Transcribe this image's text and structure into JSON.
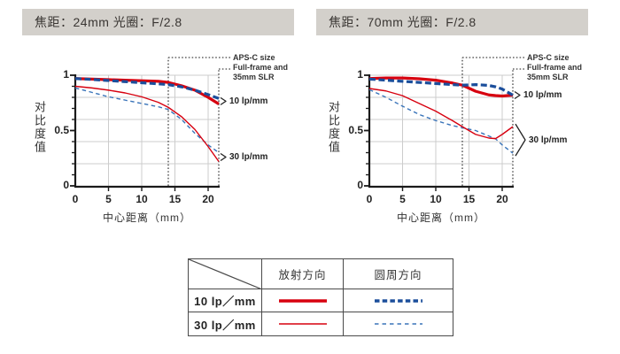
{
  "colors": {
    "red": "#d7000f",
    "blue": "#1b4e9b",
    "blue_thin": "#3873b9",
    "grid": "#cccccc",
    "axis": "#1a1a1a",
    "dotted": "#444444",
    "title_bg": "#d3d0cb"
  },
  "annotations": {
    "aps_c": "APS-C size",
    "full_frame_1": "Full-frame and",
    "full_frame_2": "35mm SLR",
    "lp10": "10 lp/mm",
    "lp30": "30 lp/mm"
  },
  "legend": {
    "col_radial": "放射方向",
    "col_circumferential": "圆周方向",
    "rows": [
      {
        "label": "10 lp／mm",
        "style": "thick"
      },
      {
        "label": "30 lp／mm",
        "style": "thin"
      }
    ]
  },
  "chart_data": [
    {
      "type": "line",
      "title": "焦距：24mm 光圈：F/2.8",
      "xlabel": "中心距离（mm）",
      "ylabel": "对比度值",
      "xlim": [
        0,
        21.6
      ],
      "ylim": [
        0,
        1
      ],
      "x_ticks": [
        0,
        5,
        10,
        15,
        20
      ],
      "y_ticks": [
        0,
        0.5,
        1
      ],
      "y_gridline_step": 0.2,
      "aps_c_line_x": 14,
      "full_frame_line_x": 21.6,
      "x": [
        0,
        2.5,
        5,
        7.5,
        10,
        12.5,
        14,
        16,
        18,
        20,
        21.6
      ],
      "series": [
        {
          "name": "10 lp/mm 放射方向",
          "color": "red",
          "style": "solid-thick",
          "values": [
            0.97,
            0.965,
            0.96,
            0.955,
            0.95,
            0.945,
            0.935,
            0.905,
            0.865,
            0.8,
            0.74
          ]
        },
        {
          "name": "10 lp/mm 圆周方向",
          "color": "blue",
          "style": "dashed-thick",
          "values": [
            0.97,
            0.962,
            0.952,
            0.942,
            0.932,
            0.922,
            0.915,
            0.895,
            0.865,
            0.825,
            0.79
          ]
        },
        {
          "name": "30 lp/mm 放射方向",
          "color": "red",
          "style": "solid-thin",
          "values": [
            0.9,
            0.885,
            0.865,
            0.84,
            0.805,
            0.755,
            0.71,
            0.625,
            0.51,
            0.355,
            0.22
          ]
        },
        {
          "name": "30 lp/mm 圆周方向",
          "color": "blue",
          "style": "dashed-thin",
          "values": [
            0.885,
            0.845,
            0.805,
            0.775,
            0.745,
            0.715,
            0.69,
            0.6,
            0.475,
            0.37,
            0.3
          ]
        }
      ]
    },
    {
      "type": "line",
      "title": "焦距：70mm 光圈：F/2.8",
      "xlabel": "中心距离（mm）",
      "ylabel": "对比度值",
      "xlim": [
        0,
        21.6
      ],
      "ylim": [
        0,
        1
      ],
      "x_ticks": [
        0,
        5,
        10,
        15,
        20
      ],
      "y_ticks": [
        0,
        0.5,
        1
      ],
      "y_gridline_step": 0.2,
      "aps_c_line_x": 14,
      "full_frame_line_x": 21.6,
      "x": [
        0,
        2.5,
        5,
        7.5,
        10,
        12.5,
        14,
        16,
        18,
        19,
        20,
        21.6
      ],
      "series": [
        {
          "name": "10 lp/mm 放射方向",
          "color": "red",
          "style": "solid-thick",
          "values": [
            0.97,
            0.975,
            0.975,
            0.968,
            0.955,
            0.93,
            0.91,
            0.855,
            0.822,
            0.816,
            0.812,
            0.82
          ]
        },
        {
          "name": "10 lp/mm 圆周方向",
          "color": "blue",
          "style": "dashed-thick",
          "values": [
            0.965,
            0.955,
            0.945,
            0.935,
            0.925,
            0.915,
            0.91,
            0.915,
            0.908,
            0.895,
            0.875,
            0.82
          ]
        },
        {
          "name": "30 lp/mm 放射方向",
          "color": "red",
          "style": "solid-thin",
          "values": [
            0.88,
            0.858,
            0.815,
            0.745,
            0.675,
            0.59,
            0.535,
            0.465,
            0.432,
            0.427,
            0.465,
            0.535
          ]
        },
        {
          "name": "30 lp/mm 圆周方向",
          "color": "blue",
          "style": "dashed-thin",
          "values": [
            0.87,
            0.8,
            0.72,
            0.645,
            0.59,
            0.545,
            0.525,
            0.5,
            0.45,
            0.425,
            0.37,
            0.295
          ]
        }
      ]
    }
  ]
}
